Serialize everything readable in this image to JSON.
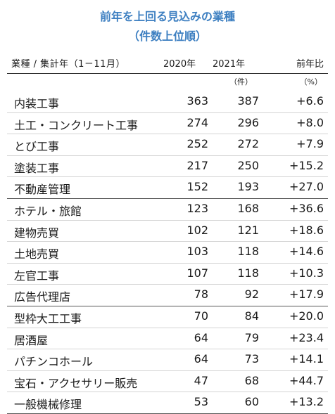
{
  "title": "前年を上回る見込みの業種",
  "subtitle": "（件数上位順）",
  "header": {
    "category": "業種 / 集計年（1－11月）",
    "year1": "2020年",
    "year2": "2021年",
    "ratio": "前年比"
  },
  "units": {
    "count": "（件）",
    "percent": "（%）"
  },
  "rows": [
    {
      "name": "内装工事",
      "v2020": "363",
      "v2021": "387",
      "ratio": "+6.6"
    },
    {
      "name": "土工・コンクリート工事",
      "v2020": "274",
      "v2021": "296",
      "ratio": "+8.0"
    },
    {
      "name": "とび工事",
      "v2020": "252",
      "v2021": "272",
      "ratio": "+7.9"
    },
    {
      "name": "塗装工事",
      "v2020": "217",
      "v2021": "250",
      "ratio": "+15.2"
    },
    {
      "name": "不動産管理",
      "v2020": "152",
      "v2021": "193",
      "ratio": "+27.0"
    },
    {
      "name": "ホテル・旅館",
      "v2020": "123",
      "v2021": "168",
      "ratio": "+36.6"
    },
    {
      "name": "建物売買",
      "v2020": "102",
      "v2021": "121",
      "ratio": "+18.6"
    },
    {
      "name": "土地売買",
      "v2020": "103",
      "v2021": "118",
      "ratio": "+14.6"
    },
    {
      "name": "左官工事",
      "v2020": "107",
      "v2021": "118",
      "ratio": "+10.3"
    },
    {
      "name": "広告代理店",
      "v2020": "78",
      "v2021": "92",
      "ratio": "+17.9"
    },
    {
      "name": "型枠大工工事",
      "v2020": "70",
      "v2021": "84",
      "ratio": "+20.0"
    },
    {
      "name": "居酒屋",
      "v2020": "64",
      "v2021": "79",
      "ratio": "+23.4"
    },
    {
      "name": "パチンコホール",
      "v2020": "64",
      "v2021": "73",
      "ratio": "+14.1"
    },
    {
      "name": "宝石・アクセサリー販売",
      "v2020": "47",
      "v2021": "68",
      "ratio": "+44.7"
    },
    {
      "name": "一般機械修理",
      "v2020": "53",
      "v2021": "60",
      "ratio": "+13.2"
    }
  ]
}
